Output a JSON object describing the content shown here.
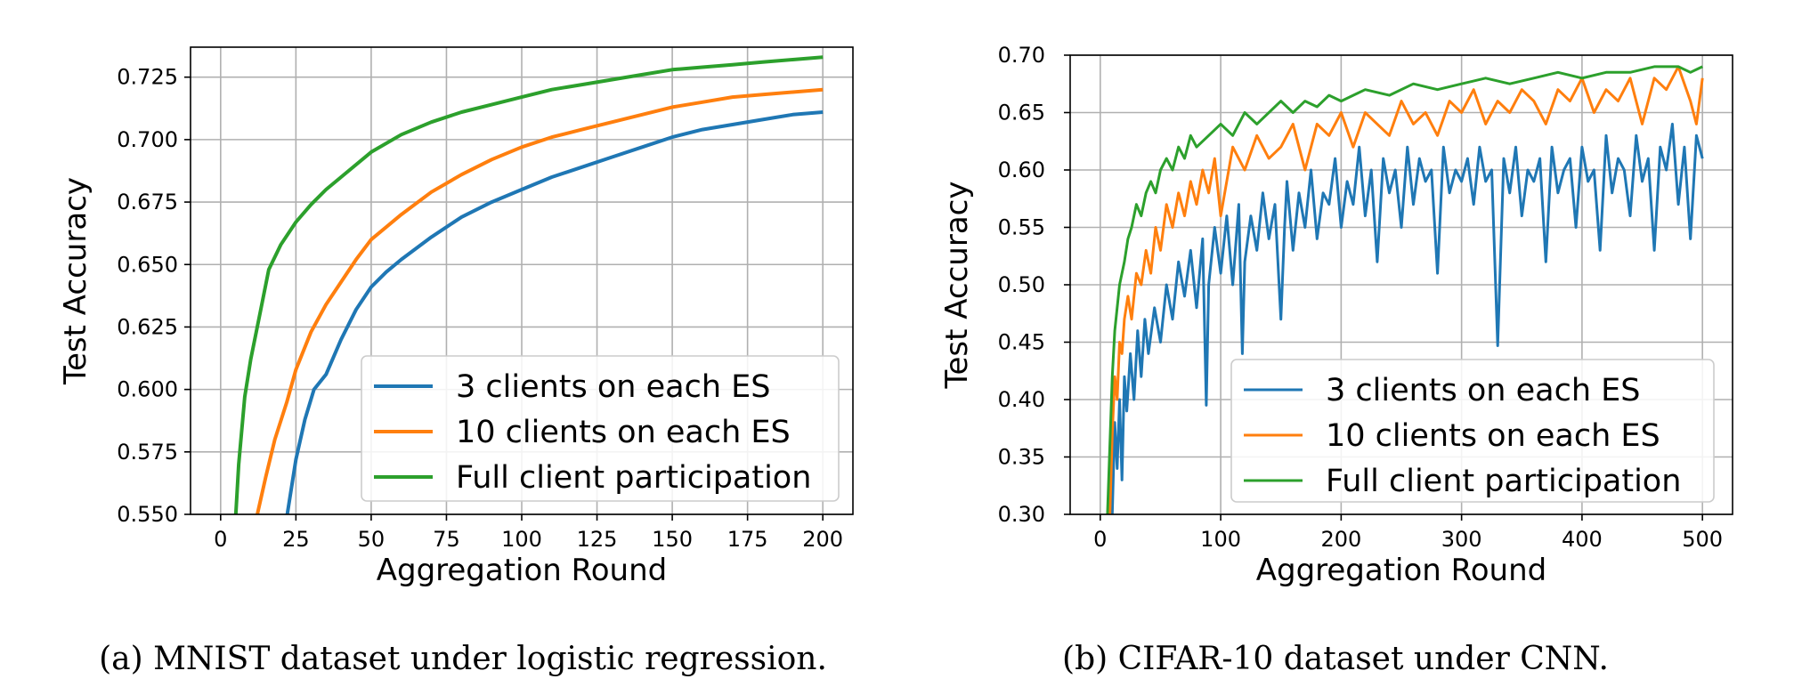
{
  "chart_data": [
    {
      "type": "line",
      "xlabel": "Aggregation Round",
      "ylabel": "Test Accuracy",
      "xlim": [
        -10,
        210
      ],
      "ylim": [
        0.55,
        0.737
      ],
      "xticks": [
        0,
        25,
        50,
        75,
        100,
        125,
        150,
        175,
        200
      ],
      "xtick_labels": [
        "0",
        "25",
        "50",
        "75",
        "100",
        "125",
        "150",
        "175",
        "200"
      ],
      "yticks": [
        0.55,
        0.575,
        0.6,
        0.625,
        0.65,
        0.675,
        0.7,
        0.725
      ],
      "ytick_labels": [
        "0.550",
        "0.575",
        "0.600",
        "0.625",
        "0.650",
        "0.675",
        "0.700",
        "0.725"
      ],
      "grid": true,
      "legend_position": "bottom-right",
      "caption": "(a) MNIST dataset under logistic regression.",
      "series": [
        {
          "name": "3 clients on each ES",
          "color": "#1f77b4",
          "x": [
            22,
            25,
            28,
            31,
            35,
            40,
            45,
            50,
            55,
            60,
            70,
            80,
            90,
            100,
            110,
            120,
            130,
            140,
            150,
            160,
            170,
            180,
            190,
            200
          ],
          "y": [
            0.549,
            0.572,
            0.588,
            0.6,
            0.606,
            0.62,
            0.632,
            0.641,
            0.647,
            0.652,
            0.661,
            0.669,
            0.675,
            0.68,
            0.685,
            0.689,
            0.693,
            0.697,
            0.701,
            0.704,
            0.706,
            0.708,
            0.71,
            0.711
          ]
        },
        {
          "name": "10 clients on each ES",
          "color": "#ff7f0e",
          "x": [
            12,
            15,
            18,
            22,
            25,
            30,
            35,
            40,
            45,
            50,
            60,
            70,
            80,
            90,
            100,
            110,
            120,
            130,
            140,
            150,
            160,
            170,
            180,
            190,
            200
          ],
          "y": [
            0.549,
            0.565,
            0.58,
            0.595,
            0.608,
            0.623,
            0.634,
            0.643,
            0.652,
            0.66,
            0.67,
            0.679,
            0.686,
            0.692,
            0.697,
            0.701,
            0.704,
            0.707,
            0.71,
            0.713,
            0.715,
            0.717,
            0.718,
            0.719,
            0.72
          ]
        },
        {
          "name": "Full client participation",
          "color": "#2ca02c",
          "x": [
            5,
            6,
            8,
            10,
            13,
            16,
            20,
            25,
            30,
            35,
            40,
            50,
            60,
            70,
            80,
            90,
            100,
            110,
            120,
            130,
            140,
            150,
            160,
            170,
            180,
            190,
            200
          ],
          "y": [
            0.549,
            0.57,
            0.597,
            0.612,
            0.63,
            0.648,
            0.658,
            0.667,
            0.674,
            0.68,
            0.685,
            0.695,
            0.702,
            0.707,
            0.711,
            0.714,
            0.717,
            0.72,
            0.722,
            0.724,
            0.726,
            0.728,
            0.729,
            0.73,
            0.731,
            0.732,
            0.733
          ]
        }
      ]
    },
    {
      "type": "line",
      "xlabel": "Aggregation Round",
      "ylabel": "Test Accuracy",
      "xlim": [
        -25,
        525
      ],
      "ylim": [
        0.3,
        0.7
      ],
      "xticks": [
        0,
        100,
        200,
        300,
        400,
        500
      ],
      "xtick_labels": [
        "0",
        "100",
        "200",
        "300",
        "400",
        "500"
      ],
      "yticks": [
        0.3,
        0.35,
        0.4,
        0.45,
        0.5,
        0.55,
        0.6,
        0.65,
        0.7
      ],
      "ytick_labels": [
        "0.30",
        "0.35",
        "0.40",
        "0.45",
        "0.50",
        "0.55",
        "0.60",
        "0.65",
        "0.70"
      ],
      "grid": true,
      "legend_position": "bottom-right",
      "caption": "(b) CIFAR-10 dataset under CNN.",
      "series": [
        {
          "name": "3 clients on each ES",
          "color": "#1f77b4",
          "x": [
            10,
            12,
            14,
            16,
            18,
            20,
            22,
            25,
            28,
            31,
            34,
            37,
            40,
            45,
            50,
            55,
            60,
            65,
            70,
            75,
            80,
            85,
            88,
            90,
            95,
            100,
            105,
            110,
            115,
            118,
            120,
            125,
            130,
            135,
            140,
            145,
            150,
            153,
            155,
            160,
            165,
            170,
            175,
            180,
            185,
            190,
            195,
            200,
            205,
            210,
            215,
            220,
            225,
            230,
            235,
            240,
            245,
            250,
            255,
            260,
            265,
            270,
            275,
            280,
            285,
            290,
            295,
            300,
            305,
            310,
            315,
            320,
            325,
            330,
            335,
            340,
            345,
            350,
            355,
            360,
            365,
            370,
            375,
            380,
            385,
            390,
            395,
            400,
            405,
            410,
            415,
            420,
            425,
            430,
            435,
            440,
            445,
            450,
            455,
            460,
            465,
            470,
            475,
            480,
            485,
            490,
            495,
            500
          ],
          "y": [
            0.3,
            0.38,
            0.34,
            0.4,
            0.33,
            0.42,
            0.39,
            0.44,
            0.4,
            0.46,
            0.42,
            0.47,
            0.44,
            0.48,
            0.45,
            0.5,
            0.47,
            0.52,
            0.49,
            0.53,
            0.48,
            0.54,
            0.395,
            0.5,
            0.55,
            0.51,
            0.56,
            0.5,
            0.57,
            0.44,
            0.52,
            0.56,
            0.53,
            0.58,
            0.54,
            0.57,
            0.47,
            0.55,
            0.59,
            0.53,
            0.58,
            0.55,
            0.6,
            0.54,
            0.58,
            0.57,
            0.61,
            0.55,
            0.59,
            0.57,
            0.62,
            0.56,
            0.6,
            0.52,
            0.61,
            0.58,
            0.6,
            0.55,
            0.62,
            0.57,
            0.61,
            0.59,
            0.6,
            0.51,
            0.62,
            0.58,
            0.6,
            0.59,
            0.61,
            0.57,
            0.62,
            0.59,
            0.6,
            0.447,
            0.61,
            0.58,
            0.62,
            0.56,
            0.6,
            0.59,
            0.61,
            0.52,
            0.62,
            0.58,
            0.6,
            0.61,
            0.55,
            0.62,
            0.59,
            0.6,
            0.53,
            0.63,
            0.58,
            0.61,
            0.6,
            0.56,
            0.63,
            0.59,
            0.61,
            0.53,
            0.62,
            0.6,
            0.64,
            0.57,
            0.62,
            0.54,
            0.63,
            0.61
          ]
        },
        {
          "name": "10 clients on each ES",
          "color": "#ff7f0e",
          "x": [
            8,
            10,
            12,
            14,
            16,
            18,
            20,
            23,
            26,
            30,
            34,
            38,
            42,
            46,
            50,
            55,
            60,
            65,
            70,
            75,
            80,
            85,
            90,
            95,
            100,
            110,
            120,
            130,
            140,
            150,
            160,
            170,
            180,
            190,
            200,
            210,
            220,
            230,
            240,
            250,
            260,
            270,
            280,
            290,
            300,
            310,
            320,
            330,
            340,
            350,
            360,
            370,
            380,
            390,
            400,
            410,
            420,
            430,
            440,
            450,
            460,
            470,
            480,
            490,
            495,
            500
          ],
          "y": [
            0.3,
            0.37,
            0.42,
            0.4,
            0.45,
            0.44,
            0.47,
            0.49,
            0.47,
            0.51,
            0.5,
            0.53,
            0.51,
            0.55,
            0.53,
            0.57,
            0.55,
            0.58,
            0.56,
            0.59,
            0.57,
            0.6,
            0.58,
            0.61,
            0.56,
            0.62,
            0.6,
            0.63,
            0.61,
            0.62,
            0.64,
            0.6,
            0.64,
            0.63,
            0.65,
            0.62,
            0.65,
            0.64,
            0.63,
            0.66,
            0.64,
            0.65,
            0.63,
            0.66,
            0.65,
            0.67,
            0.64,
            0.66,
            0.65,
            0.67,
            0.66,
            0.64,
            0.67,
            0.66,
            0.68,
            0.65,
            0.67,
            0.66,
            0.68,
            0.64,
            0.68,
            0.67,
            0.69,
            0.66,
            0.64,
            0.68
          ]
        },
        {
          "name": "Full client participation",
          "color": "#2ca02c",
          "x": [
            6,
            8,
            10,
            12,
            14,
            16,
            18,
            20,
            23,
            26,
            30,
            34,
            38,
            42,
            46,
            50,
            55,
            60,
            65,
            70,
            75,
            80,
            90,
            100,
            110,
            120,
            130,
            140,
            150,
            160,
            170,
            180,
            190,
            200,
            220,
            240,
            260,
            280,
            300,
            320,
            340,
            360,
            380,
            400,
            420,
            440,
            460,
            480,
            490,
            500
          ],
          "y": [
            0.3,
            0.36,
            0.42,
            0.46,
            0.48,
            0.5,
            0.51,
            0.52,
            0.54,
            0.55,
            0.57,
            0.56,
            0.58,
            0.59,
            0.58,
            0.6,
            0.61,
            0.6,
            0.62,
            0.61,
            0.63,
            0.62,
            0.63,
            0.64,
            0.63,
            0.65,
            0.64,
            0.65,
            0.66,
            0.65,
            0.66,
            0.655,
            0.665,
            0.66,
            0.67,
            0.665,
            0.675,
            0.67,
            0.675,
            0.68,
            0.675,
            0.68,
            0.685,
            0.68,
            0.685,
            0.685,
            0.69,
            0.69,
            0.685,
            0.69
          ]
        }
      ]
    }
  ]
}
